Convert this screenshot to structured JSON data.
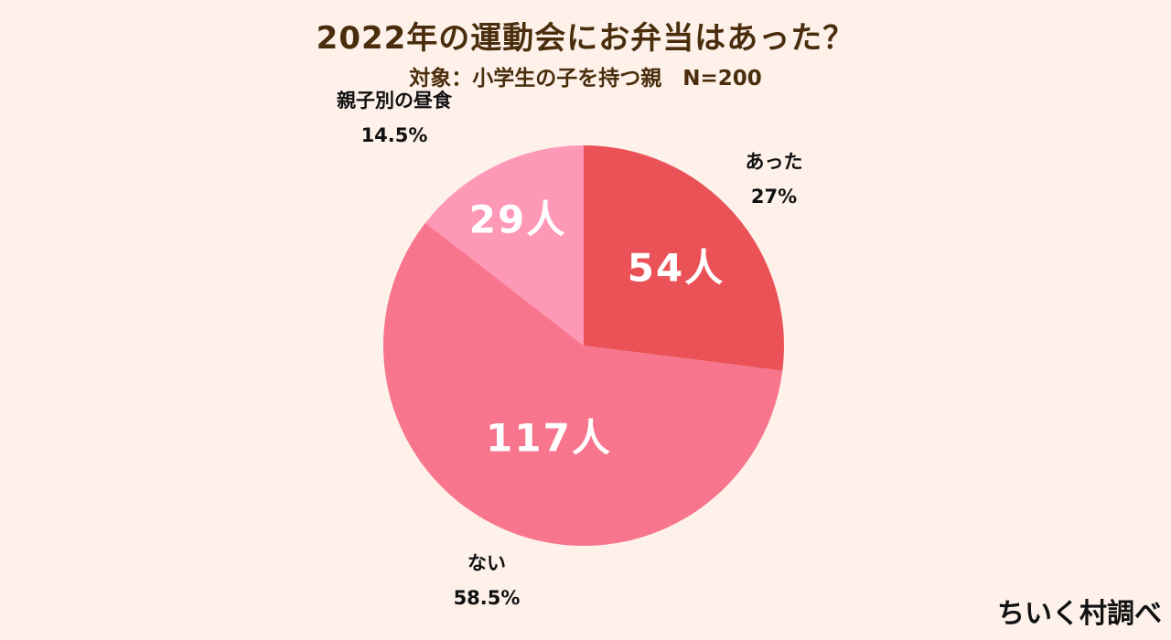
{
  "chart_data": {
    "type": "pie",
    "title": "2022年の運動会にお弁当はあった？",
    "subtitle": "対象：小学生の子を持つ親　N=200",
    "slices": [
      {
        "label": "あった",
        "count_label": "54人",
        "percent_label": "27%",
        "value": 54,
        "color": "#ea5257"
      },
      {
        "label": "ない",
        "count_label": "117人",
        "percent_label": "58.5%",
        "value": 117,
        "color": "#f7758d"
      },
      {
        "label": "親子別の昼食",
        "count_label": "29人",
        "percent_label": "14.5%",
        "value": 29,
        "color": "#fd98b6"
      }
    ]
  },
  "footer": {
    "credit": "ちいく村調べ"
  },
  "colors": {
    "background": "#fdf1ea",
    "title": "#4a2d0c"
  }
}
